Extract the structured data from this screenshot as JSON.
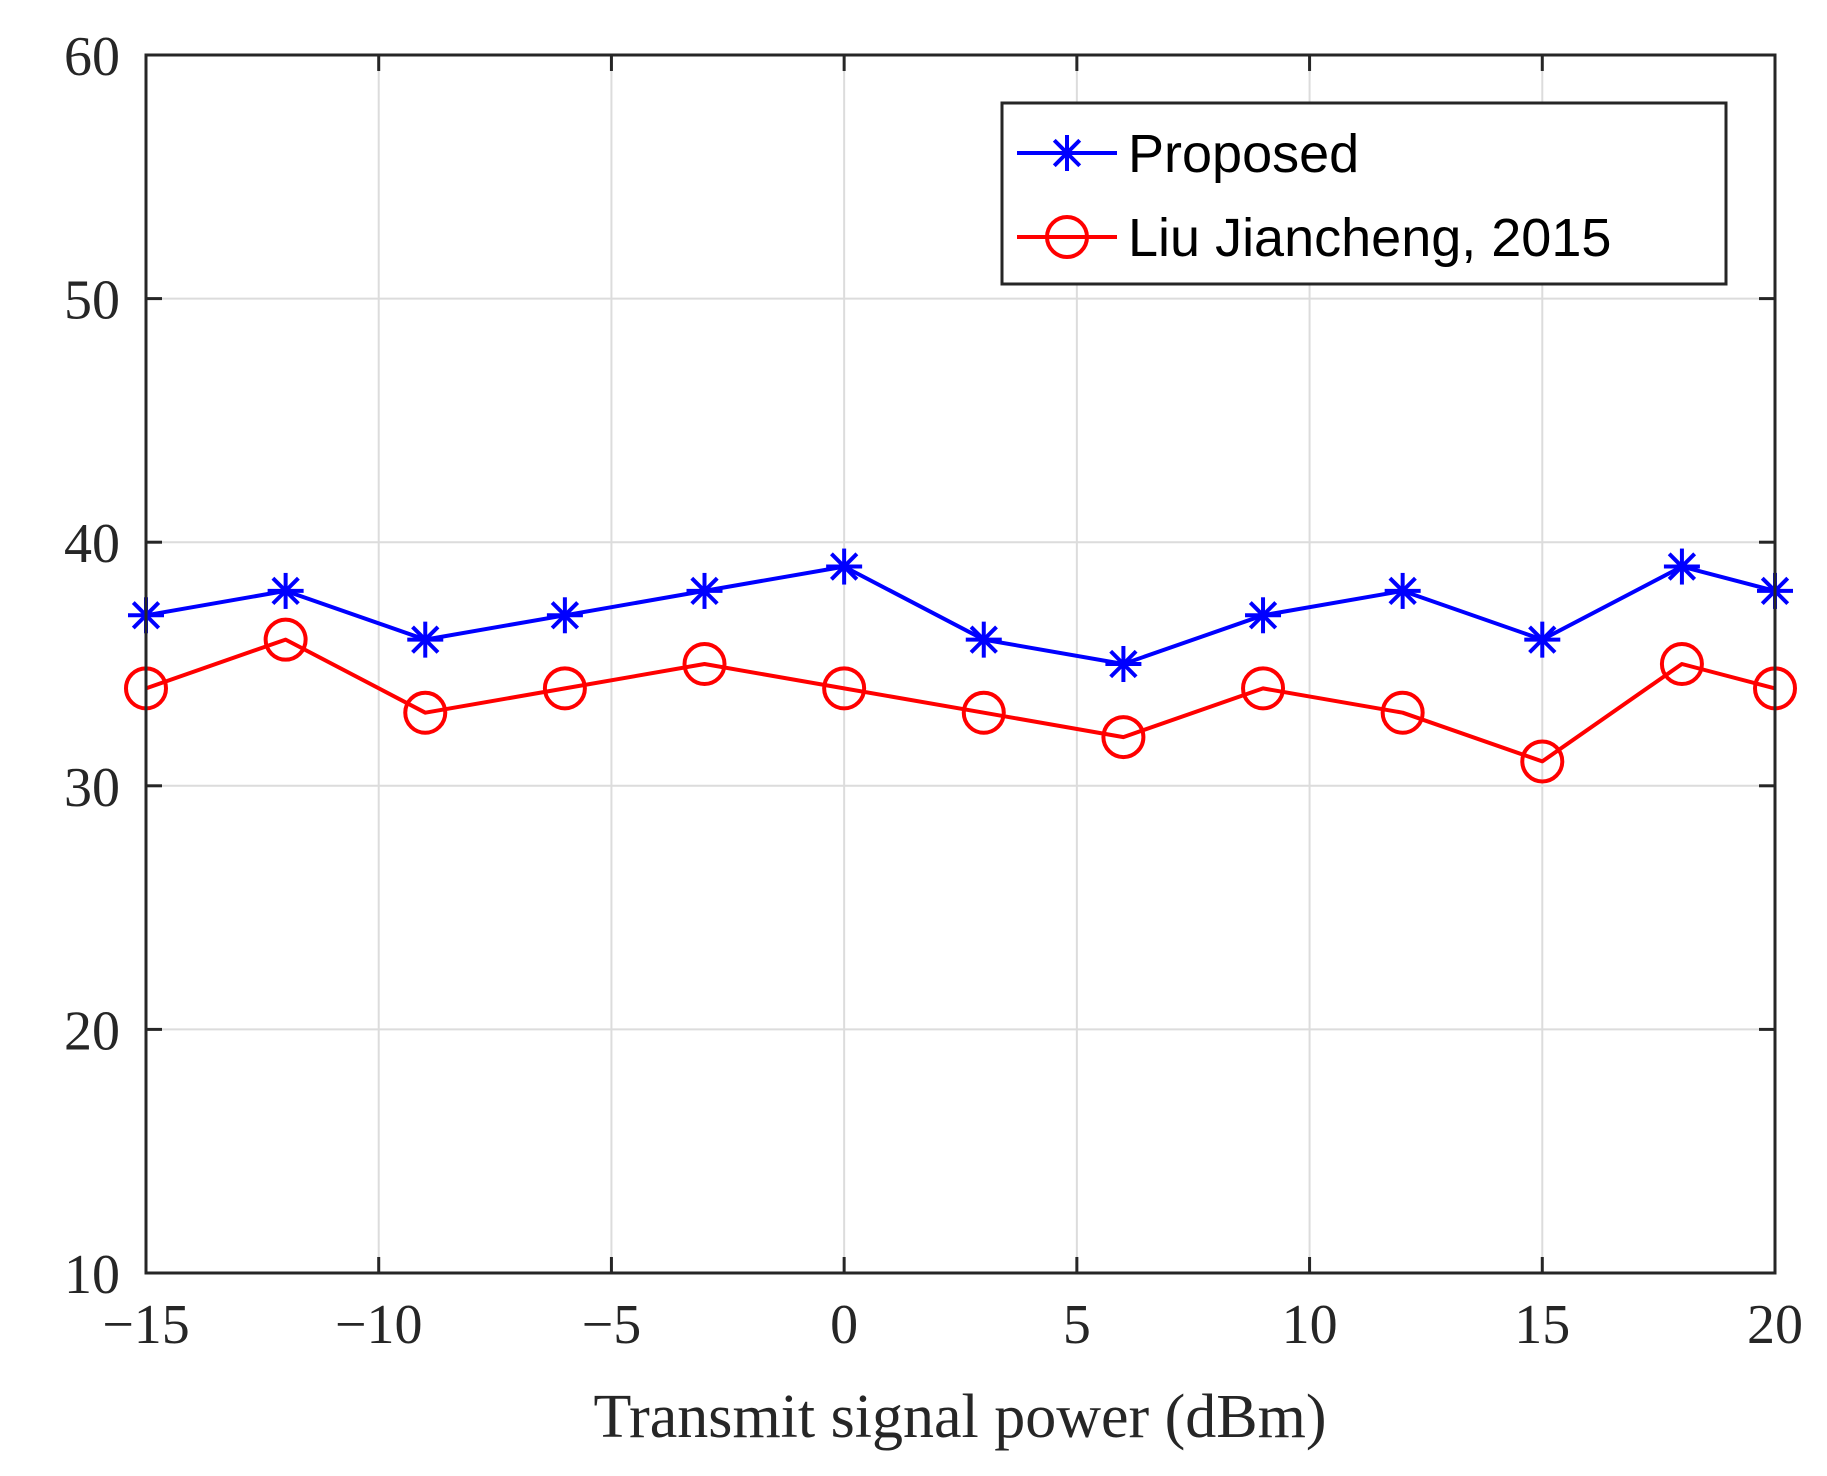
{
  "chart_data": {
    "type": "line",
    "title": "",
    "xlabel": "Transmit signal power (dBm)",
    "ylabel": "",
    "xlim": [
      -15,
      20
    ],
    "ylim": [
      10,
      60
    ],
    "xticks": [
      -15,
      -10,
      -5,
      0,
      5,
      10,
      15,
      20
    ],
    "xtick_labels": [
      "−15",
      "−10",
      "−5",
      "0",
      "5",
      "10",
      "15",
      "20"
    ],
    "yticks": [
      10,
      20,
      30,
      40,
      50,
      60
    ],
    "ytick_labels": [
      "10",
      "20",
      "30",
      "40",
      "50",
      "60"
    ],
    "grid": true,
    "legend_position": "top-right",
    "x": [
      -15,
      -12,
      -9,
      -6,
      -3,
      0,
      3,
      6,
      9,
      12,
      15,
      18,
      20
    ],
    "series": [
      {
        "name": "Proposed",
        "color": "#0000ff",
        "marker": "asterisk",
        "values": [
          37,
          38,
          36,
          37,
          38,
          39,
          36,
          35,
          37,
          38,
          36,
          39,
          38
        ]
      },
      {
        "name": "Liu Jiancheng, 2015",
        "color": "#ff0000",
        "marker": "circle",
        "values": [
          34,
          36,
          33,
          34,
          35,
          34,
          33,
          32,
          34,
          33,
          31,
          35,
          34
        ]
      }
    ]
  }
}
